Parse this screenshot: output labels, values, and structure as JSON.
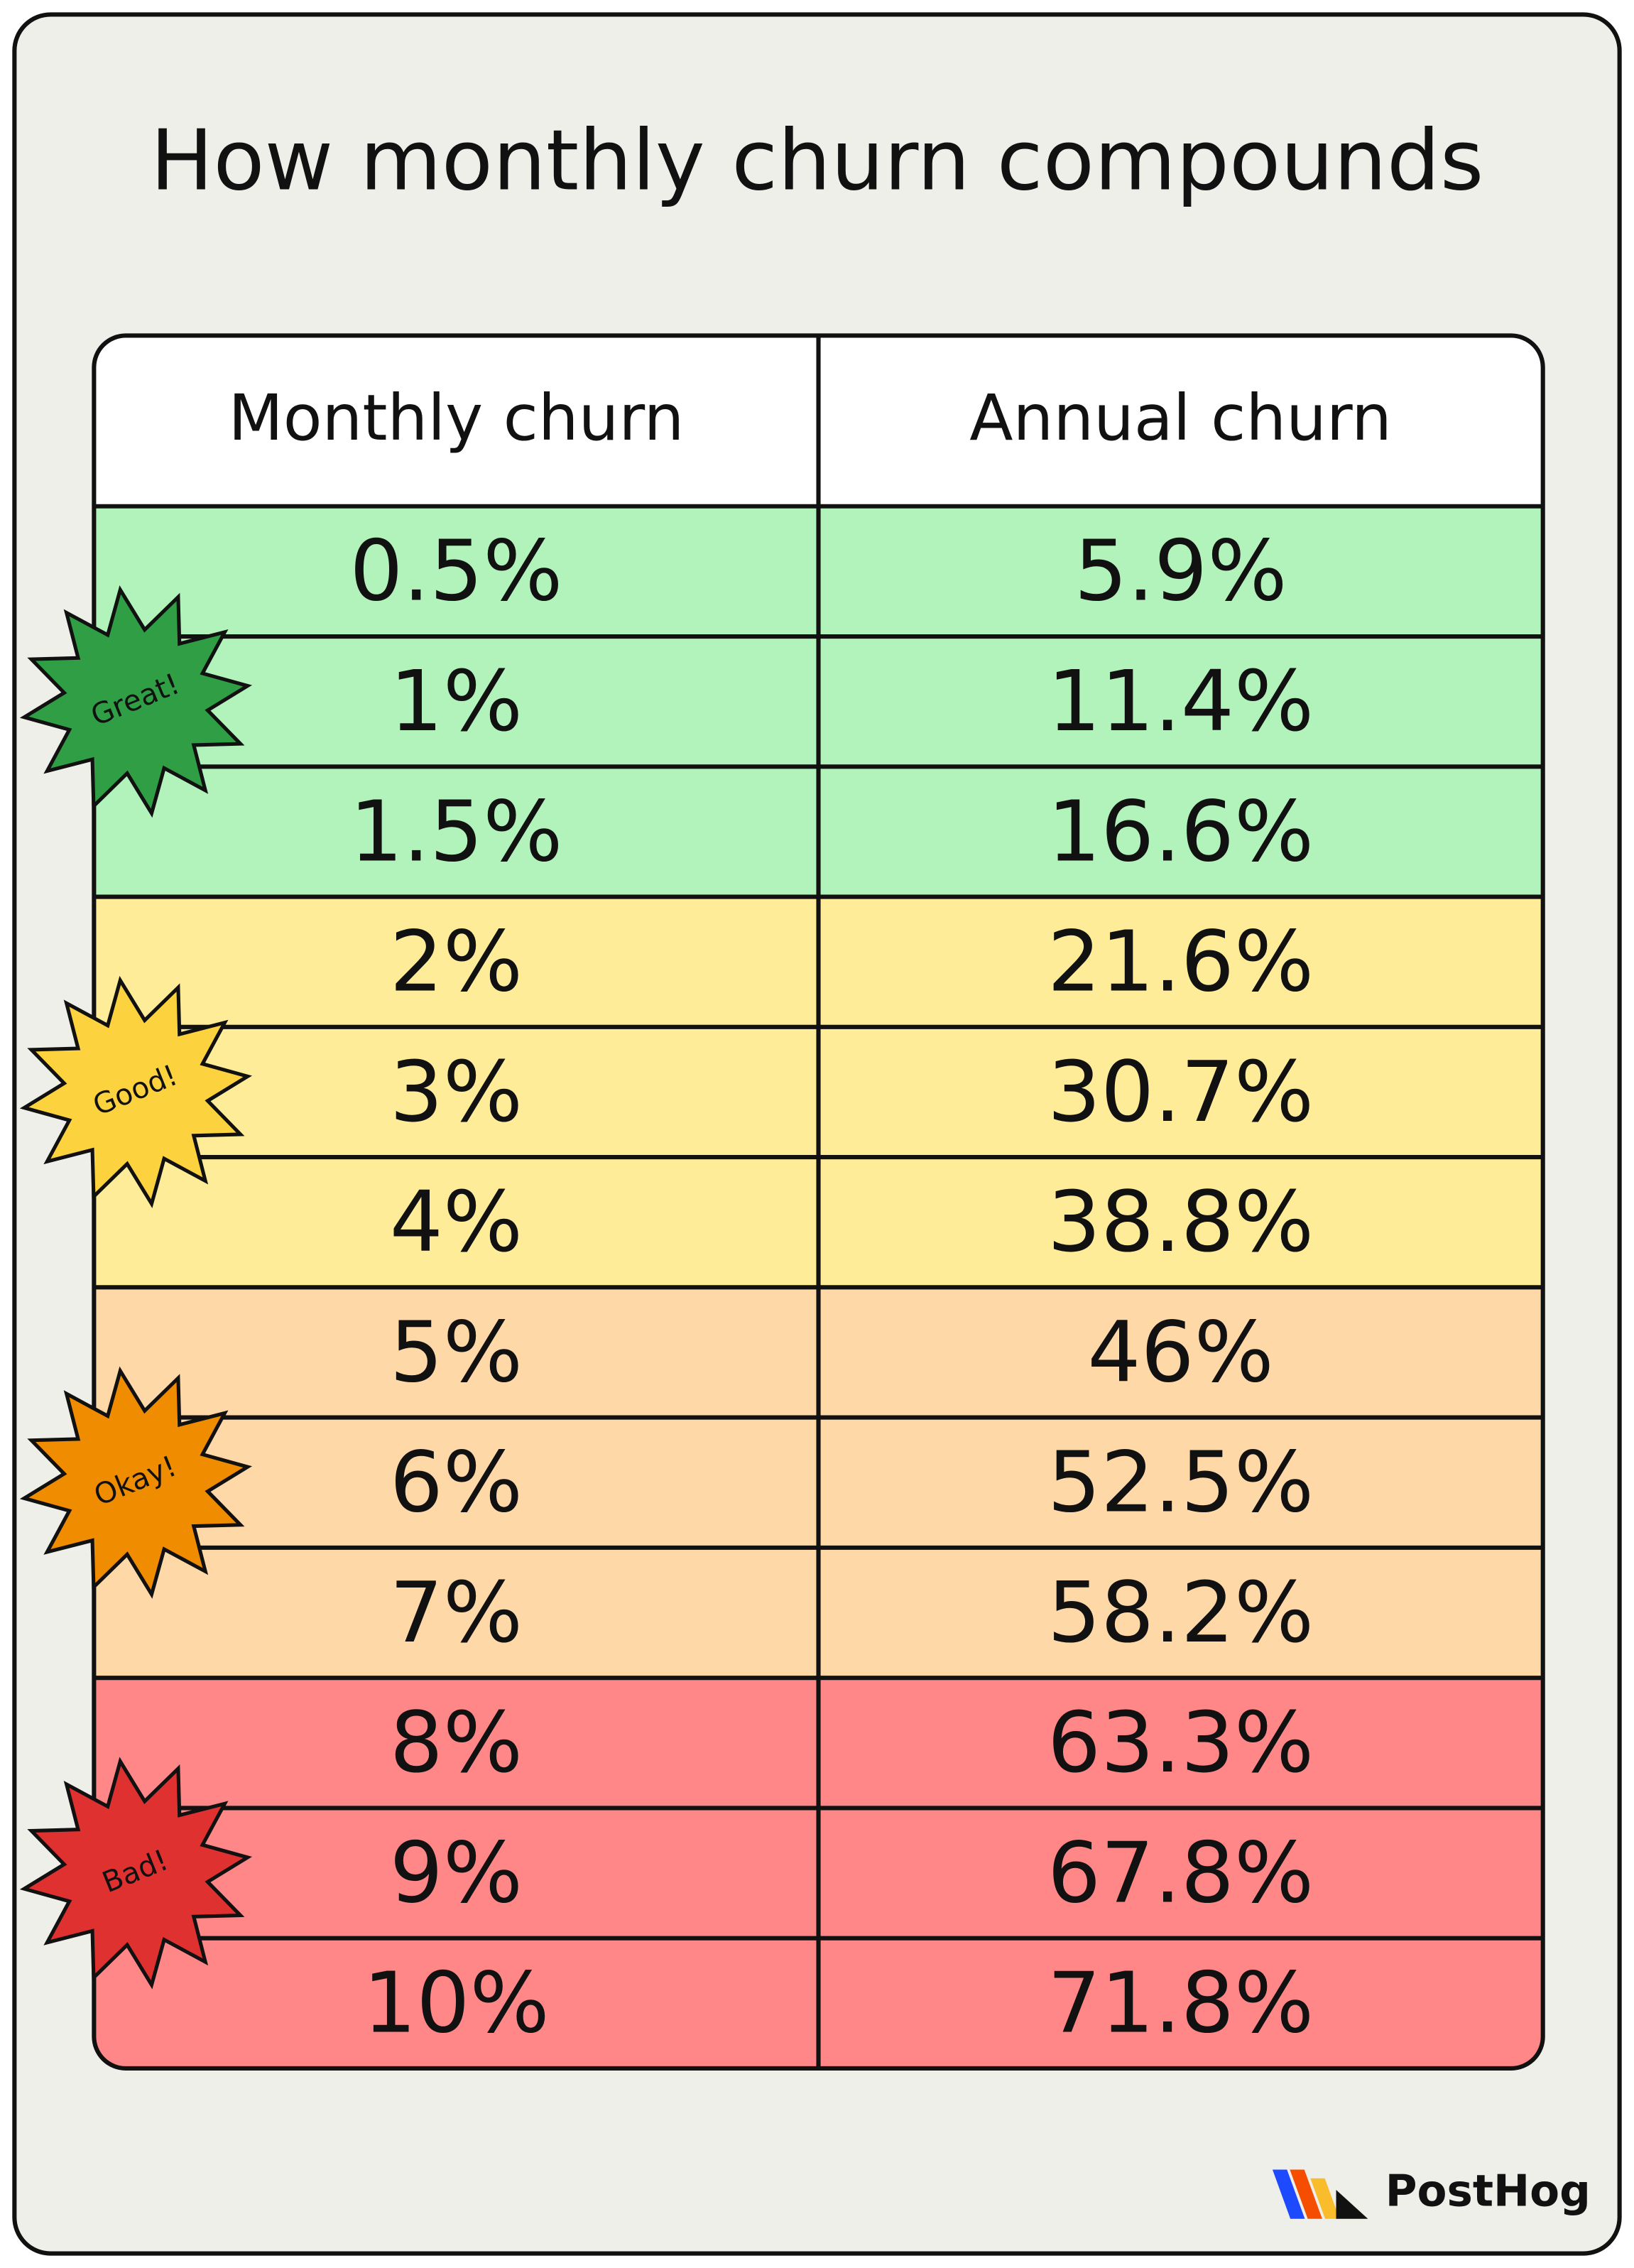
{
  "header": {
    "title": "How monthly churn compounds"
  },
  "table": {
    "columns": [
      "Monthly churn",
      "Annual churn"
    ],
    "tiers": [
      {
        "label": "Great!",
        "color": "#b2f2bb",
        "badge_color": "#2f9e44",
        "rows": [
          [
            "0.5%",
            "5.9%"
          ],
          [
            "1%",
            "11.4%"
          ],
          [
            "1.5%",
            "16.6%"
          ]
        ]
      },
      {
        "label": "Good!",
        "color": "#ffec99",
        "badge_color": "#fcd33f",
        "rows": [
          [
            "2%",
            "21.6%"
          ],
          [
            "3%",
            "30.7%"
          ],
          [
            "4%",
            "38.8%"
          ]
        ]
      },
      {
        "label": "Okay!",
        "color": "#ffd8a8",
        "badge_color": "#f08c00",
        "rows": [
          [
            "5%",
            "46%"
          ],
          [
            "6%",
            "52.5%"
          ],
          [
            "7%",
            "58.2%"
          ]
        ]
      },
      {
        "label": "Bad!",
        "color": "#ff8787",
        "badge_color": "#e03131",
        "rows": [
          [
            "8%",
            "63.3%"
          ],
          [
            "9%",
            "67.8%"
          ],
          [
            "10%",
            "71.8%"
          ]
        ]
      }
    ]
  },
  "footer": {
    "brand": "PostHog"
  }
}
